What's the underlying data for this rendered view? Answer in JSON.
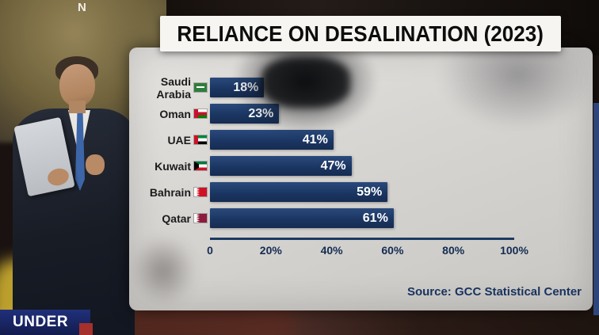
{
  "watermark": "N",
  "lower_third": {
    "label": "UNDER"
  },
  "panel": {
    "title": "RELIANCE ON DESALINATION (2023)",
    "source": "Source: GCC Statistical Center"
  },
  "chart_data": {
    "type": "bar",
    "orientation": "horizontal",
    "title": "RELIANCE ON DESALINATION (2023)",
    "categories": [
      "Saudi Arabia",
      "Oman",
      "UAE",
      "Kuwait",
      "Bahrain",
      "Qatar"
    ],
    "values": [
      18,
      23,
      41,
      47,
      59,
      61
    ],
    "value_labels": [
      "18%",
      "23%",
      "41%",
      "47%",
      "59%",
      "61%"
    ],
    "flags": [
      "saudi-arabia",
      "oman",
      "uae",
      "kuwait",
      "bahrain",
      "qatar"
    ],
    "x_ticks": [
      "0",
      "20%",
      "40%",
      "60%",
      "80%",
      "100%"
    ],
    "xlim": [
      0,
      100
    ],
    "grid": false,
    "legend": false,
    "bar_color": "#1c3a63",
    "source": "Source: GCC Statistical Center"
  },
  "colors": {
    "bar": "#1c3a63",
    "axis": "#1c3a63",
    "panel_bg": "#d8d6d3",
    "title_bg": "#f7f5f1",
    "banner_bg": "#1b2a6b",
    "source_text": "#17335f"
  }
}
